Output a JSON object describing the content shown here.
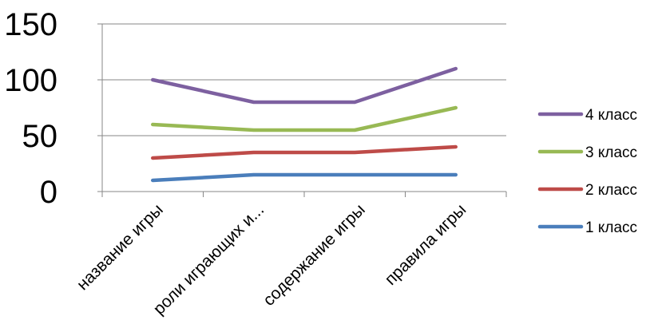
{
  "chart_data": {
    "type": "line",
    "categories": [
      "название игры",
      "роли играющих и...",
      "содержание игры",
      "правила игры"
    ],
    "series": [
      {
        "name": "1 класс",
        "values": [
          10,
          15,
          15,
          15
        ],
        "color": "#4a7ebb"
      },
      {
        "name": "2 класс",
        "values": [
          30,
          35,
          35,
          40
        ],
        "color": "#be4b48"
      },
      {
        "name": "3 класс",
        "values": [
          60,
          55,
          55,
          75
        ],
        "color": "#98b954"
      },
      {
        "name": "4 класс",
        "values": [
          100,
          80,
          80,
          110
        ],
        "color": "#7d60a0"
      }
    ],
    "yticks": [
      "0",
      "50",
      "100",
      "150"
    ],
    "ylim": [
      0,
      150
    ],
    "grid": "horizontal",
    "legend": "right",
    "legend_order": [
      "4 класс",
      "3 класс",
      "2 класс",
      "1 класс"
    ]
  }
}
